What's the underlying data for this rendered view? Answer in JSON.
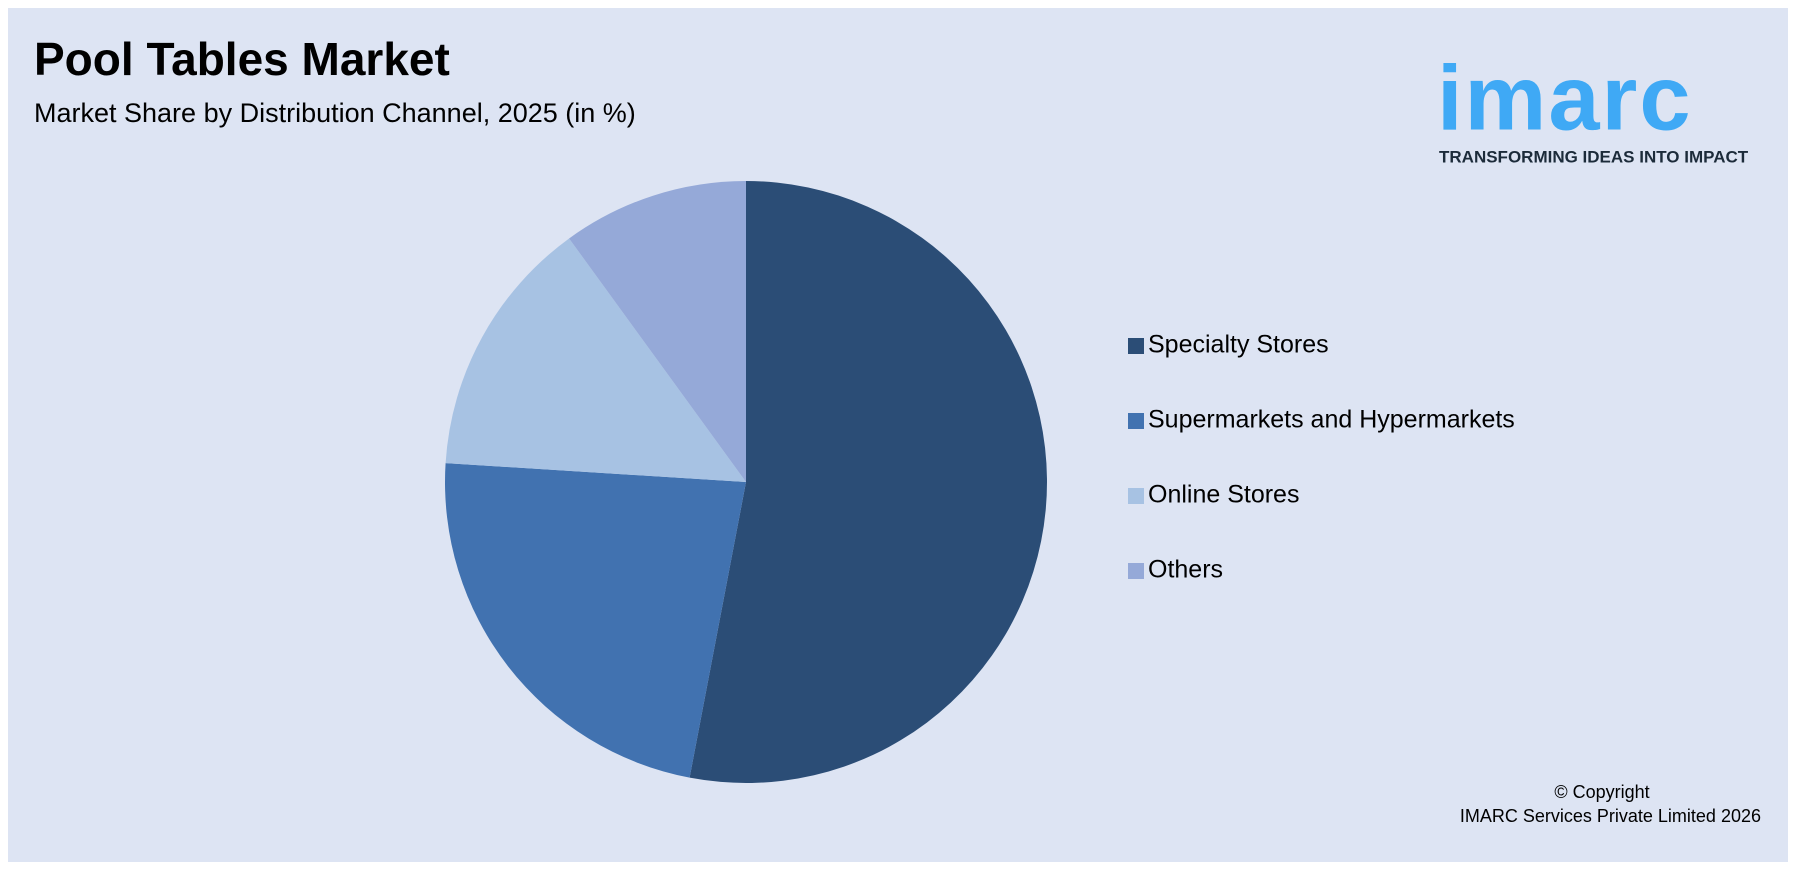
{
  "chart_data": {
    "type": "pie",
    "title": "Pool Tables Market",
    "subtitle": "Market Share by Distribution Channel, 2025 (in %)",
    "categories": [
      "Specialty Stores",
      "Supermarkets and Hypermarkets",
      "Online Stores",
      "Others"
    ],
    "values": [
      53,
      23,
      14,
      10
    ],
    "colors": [
      "#2b4d76",
      "#4172b0",
      "#a7c2e3",
      "#95a9d8"
    ],
    "legend": "right"
  },
  "logo": {
    "text": "imarc",
    "tagline": "TRANSFORMING IDEAS INTO IMPACT"
  },
  "footer": {
    "line1": "© Copyright",
    "line2": "IMARC Services Private Limited 2026"
  }
}
